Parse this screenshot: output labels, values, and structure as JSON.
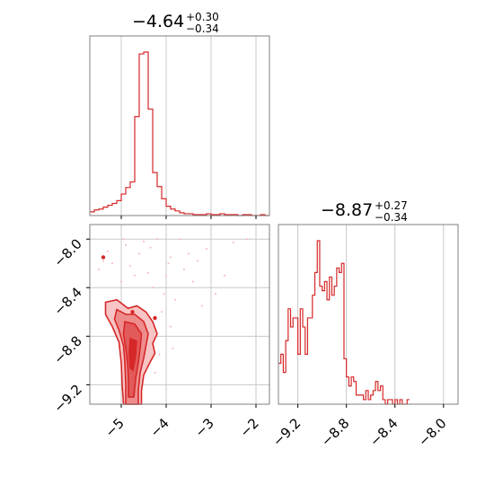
{
  "colors": {
    "series": "#d62728",
    "fill_light": "#f7c5c5",
    "fill_mid": "#ee8c8c",
    "fill_dark": "#e35a5a",
    "points": "#f4b6b6"
  },
  "chart_data": [
    {
      "type": "histogram",
      "parameter_index": 0,
      "title": {
        "median": "−4.64",
        "upper": "+0.30",
        "lower": "−0.34"
      },
      "xlim": [
        -5.7,
        -1.7
      ],
      "grid": true,
      "bin_edges_start": -5.7,
      "bin_width": 0.1,
      "counts": [
        4,
        6,
        7,
        9,
        11,
        13,
        16,
        23,
        30,
        36,
        106,
        173,
        175,
        114,
        46,
        31,
        18,
        10,
        7,
        5,
        3,
        2,
        2,
        1,
        1,
        1,
        2,
        1,
        1,
        2,
        1,
        1,
        1,
        0,
        1,
        1,
        0,
        0,
        1,
        0
      ]
    },
    {
      "type": "histogram",
      "parameter_index": 1,
      "title": {
        "median": "−8.87",
        "upper": "+0.27",
        "lower": "−0.34"
      },
      "xlim": [
        -9.36,
        -7.88
      ],
      "xticks": [
        "−9.2",
        "−8.8",
        "−8.4",
        "−8.0"
      ],
      "xtick_values": [
        -9.2,
        -8.8,
        -8.4,
        -8.0
      ],
      "grid": true,
      "bin_edges_start": -9.36,
      "bin_width": 0.02,
      "counts": [
        9,
        11,
        7,
        14,
        21,
        17,
        19,
        19,
        11,
        21,
        17,
        11,
        19,
        19,
        24,
        29,
        36,
        26,
        25,
        27,
        23,
        28,
        24,
        26,
        30,
        29,
        31,
        10,
        6,
        4,
        6,
        5,
        2,
        2,
        2,
        1,
        3,
        1,
        2,
        3,
        5,
        3,
        4,
        1,
        0,
        1,
        1,
        0,
        1,
        0,
        1,
        0,
        0,
        1
      ]
    },
    {
      "type": "2d-density",
      "xlim": [
        -5.7,
        -1.7
      ],
      "ylim": [
        -9.36,
        -7.88
      ],
      "xticks": [
        "−5",
        "−4",
        "−3",
        "−2"
      ],
      "xtick_values": [
        -5,
        -4,
        -3,
        -2
      ],
      "yticks": [
        "−8.0",
        "−8.4",
        "−8.8",
        "−9.2"
      ],
      "ytick_values": [
        -8.0,
        -8.4,
        -8.8,
        -9.2
      ],
      "grid": true,
      "contour_levels": 4,
      "points": [
        [
          -4.9,
          -8.05
        ],
        [
          -4.5,
          -8.02
        ],
        [
          -4.2,
          -8.0
        ],
        [
          -3.9,
          -8.15
        ],
        [
          -3.3,
          -8.18
        ],
        [
          -2.5,
          -8.03
        ],
        [
          -3.7,
          -8.0
        ],
        [
          -5.2,
          -8.2
        ],
        [
          -4.8,
          -8.22
        ],
        [
          -4.0,
          -8.3
        ],
        [
          -3.6,
          -8.25
        ],
        [
          -2.7,
          -8.3
        ],
        [
          -5.4,
          -8.18
        ],
        [
          -4.6,
          -8.12
        ],
        [
          -3.1,
          -8.08
        ],
        [
          -4.3,
          -8.4
        ],
        [
          -3.8,
          -8.5
        ],
        [
          -5.0,
          -8.35
        ],
        [
          -4.1,
          -8.6
        ],
        [
          -3.9,
          -8.72
        ],
        [
          -4.4,
          -8.28
        ],
        [
          -5.3,
          -8.1
        ],
        [
          -3.4,
          -8.35
        ],
        [
          -2.9,
          -8.45
        ],
        [
          -3.95,
          -8.2
        ],
        [
          -4.7,
          -8.3
        ],
        [
          -4.15,
          -8.95
        ],
        [
          -4.25,
          -9.1
        ],
        [
          -3.85,
          -8.9
        ],
        [
          -5.5,
          -8.25
        ],
        [
          -4.05,
          -8.45
        ],
        [
          -3.5,
          -8.12
        ],
        [
          -4.95,
          -8.0
        ],
        [
          -4.35,
          -8.07
        ],
        [
          -2.2,
          -8.0
        ],
        [
          -3.2,
          -8.55
        ]
      ],
      "outliers": [
        [
          -5.4,
          -8.15
        ],
        [
          -4.25,
          -8.65
        ],
        [
          -4.75,
          -8.6
        ]
      ]
    }
  ]
}
